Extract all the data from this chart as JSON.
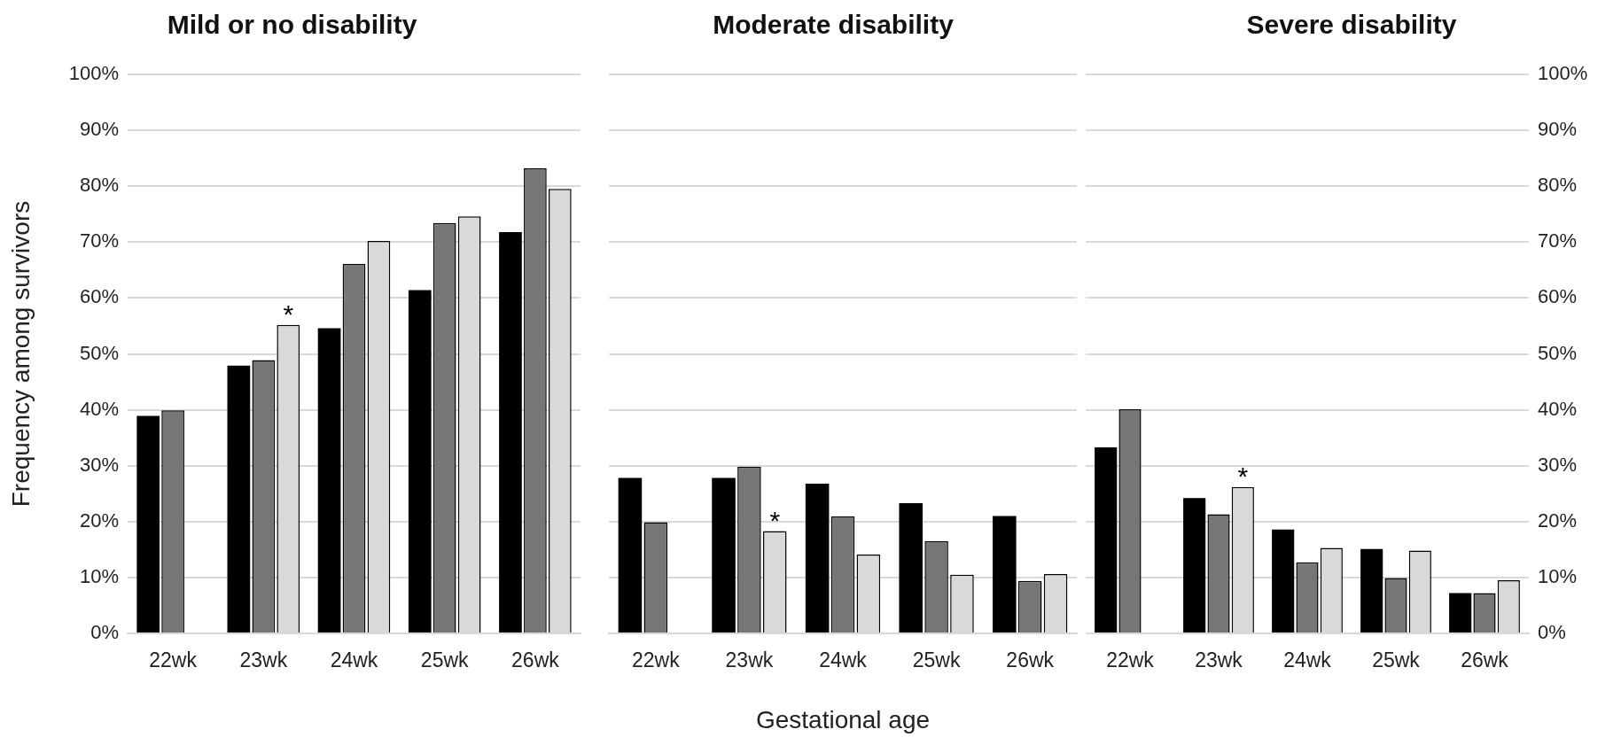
{
  "chart_data": [
    {
      "type": "bar",
      "title": "Mild or no disability",
      "ylabel": "Frequency among survivors",
      "categories": [
        "22wk",
        "23wk",
        "24wk",
        "25wk",
        "26wk"
      ],
      "series": [
        {
          "color": "#000000",
          "values": [
            38.9,
            47.9,
            54.6,
            61.4,
            71.8
          ]
        },
        {
          "color": "#767676",
          "values": [
            39.9,
            48.9,
            66.1,
            73.4,
            83.2
          ]
        },
        {
          "color": "#d9d9d9",
          "values": [
            null,
            55.2,
            70.2,
            74.6,
            79.5
          ]
        }
      ],
      "ylim": [
        0,
        100
      ],
      "yticks": [
        {
          "value": 0,
          "label": "0%"
        },
        {
          "value": 10,
          "label": "10%"
        },
        {
          "value": 20,
          "label": "20%"
        },
        {
          "value": 30,
          "label": "30%"
        },
        {
          "value": 40,
          "label": "40%"
        },
        {
          "value": 50,
          "label": "50%"
        },
        {
          "value": 60,
          "label": "60%"
        },
        {
          "value": 70,
          "label": "70%"
        },
        {
          "value": 80,
          "label": "80%"
        },
        {
          "value": 90,
          "label": "90%"
        },
        {
          "value": 100,
          "label": "100%"
        }
      ],
      "grid": "y",
      "legend": false,
      "annotations": [
        "*"
      ]
    },
    {
      "type": "bar",
      "title": "Moderate disability",
      "xlabel": "Gestational age",
      "categories": [
        "22wk",
        "23wk",
        "24wk",
        "25wk",
        "26wk"
      ],
      "series": [
        {
          "color": "#000000",
          "values": [
            27.8,
            27.8,
            26.8,
            23.3,
            21.0
          ]
        },
        {
          "color": "#767676",
          "values": [
            19.9,
            29.8,
            20.9,
            16.5,
            9.4
          ]
        },
        {
          "color": "#d9d9d9",
          "values": [
            null,
            18.3,
            14.1,
            10.5,
            10.6
          ]
        }
      ],
      "ylim": [
        0,
        100
      ],
      "yticks": [
        0,
        10,
        20,
        30,
        40,
        50,
        60,
        70,
        80,
        90,
        100
      ],
      "grid": "y",
      "legend": false,
      "tick_labels": "x",
      "annotations": [
        "*"
      ]
    },
    {
      "type": "bar",
      "title": "Severe disability",
      "categories": [
        "22wk",
        "23wk",
        "24wk",
        "25wk",
        "26wk"
      ],
      "series": [
        {
          "color": "#000000",
          "axis": "y2",
          "values": [
            33.3,
            24.2,
            18.6,
            15.1,
            7.2
          ]
        },
        {
          "color": "#767676",
          "axis": "y2",
          "values": [
            40.1,
            21.3,
            12.7,
            9.9,
            7.2
          ]
        },
        {
          "color": "#d9d9d9",
          "axis": "y2",
          "values": [
            null,
            26.2,
            15.3,
            14.8,
            9.5
          ]
        }
      ],
      "y2lim": [
        0,
        100
      ],
      "y2ticks": [
        {
          "value": 0,
          "label": "0%"
        },
        {
          "value": 10,
          "label": "10%"
        },
        {
          "value": 20,
          "label": "20%"
        },
        {
          "value": 30,
          "label": "30%"
        },
        {
          "value": 40,
          "label": "40%"
        },
        {
          "value": 50,
          "label": "50%"
        },
        {
          "value": 60,
          "label": "60%"
        },
        {
          "value": 70,
          "label": "70%"
        },
        {
          "value": 80,
          "label": "80%"
        },
        {
          "value": 90,
          "label": "90%"
        },
        {
          "value": 100,
          "label": "100%"
        }
      ],
      "grid": "y",
      "legend": false,
      "annotations": [
        "*"
      ]
    }
  ]
}
